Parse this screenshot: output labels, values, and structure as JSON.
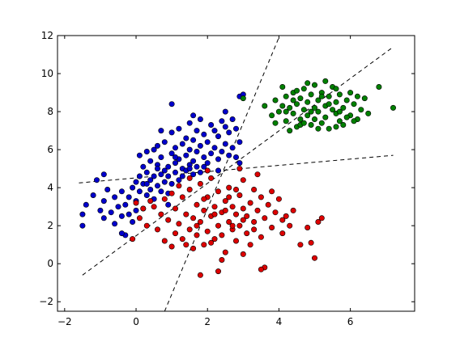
{
  "chart_data": {
    "type": "scatter",
    "title": "",
    "xlabel": "",
    "ylabel": "",
    "xlim": [
      -2.2,
      7.8
    ],
    "ylim": [
      -2.5,
      12
    ],
    "grid": false,
    "xticks": [
      "−2",
      "0",
      "2",
      "4",
      "6"
    ],
    "yticks": [
      "−2",
      "0",
      "2",
      "4",
      "6",
      "8",
      "10",
      "12"
    ],
    "xtick_values": [
      -2,
      0,
      2,
      4,
      6
    ],
    "ytick_values": [
      -2,
      0,
      2,
      4,
      6,
      8,
      10,
      12
    ],
    "marker_edge_color": "#000000",
    "series": [
      {
        "color": "#0000cc",
        "points": [
          [
            -1.5,
            2.0
          ],
          [
            -1.5,
            2.6
          ],
          [
            -1.4,
            3.1
          ],
          [
            -1.2,
            3.6
          ],
          [
            -1.1,
            4.4
          ],
          [
            -1.0,
            2.8
          ],
          [
            -0.9,
            3.3
          ],
          [
            -0.9,
            2.4
          ],
          [
            -0.8,
            3.9
          ],
          [
            -0.7,
            2.7
          ],
          [
            -0.6,
            2.1
          ],
          [
            -0.6,
            3.5
          ],
          [
            -0.5,
            3.0
          ],
          [
            -0.4,
            3.8
          ],
          [
            -0.4,
            2.5
          ],
          [
            -0.3,
            3.1
          ],
          [
            -0.3,
            1.5
          ],
          [
            -0.2,
            2.6
          ],
          [
            -0.2,
            3.5
          ],
          [
            -0.1,
            4.0
          ],
          [
            -0.1,
            2.2
          ],
          [
            0.0,
            4.3
          ],
          [
            0.0,
            3.3
          ],
          [
            0.0,
            2.8
          ],
          [
            0.1,
            5.7
          ],
          [
            0.1,
            4.6
          ],
          [
            0.1,
            3.8
          ],
          [
            0.2,
            5.1
          ],
          [
            0.2,
            4.2
          ],
          [
            0.2,
            2.9
          ],
          [
            0.3,
            4.8
          ],
          [
            0.3,
            3.6
          ],
          [
            0.3,
            5.9
          ],
          [
            0.4,
            4.4
          ],
          [
            0.4,
            3.9
          ],
          [
            0.4,
            5.4
          ],
          [
            0.5,
            6.0
          ],
          [
            0.5,
            4.6
          ],
          [
            0.5,
            3.4
          ],
          [
            0.6,
            4.1
          ],
          [
            0.6,
            5.2
          ],
          [
            0.6,
            6.2
          ],
          [
            0.7,
            4.7
          ],
          [
            0.7,
            3.8
          ],
          [
            0.7,
            5.6
          ],
          [
            0.8,
            4.9
          ],
          [
            0.8,
            4.3
          ],
          [
            0.8,
            6.4
          ],
          [
            0.9,
            5.1
          ],
          [
            0.9,
            3.7
          ],
          [
            0.9,
            4.6
          ],
          [
            1.0,
            5.8
          ],
          [
            1.0,
            4.2
          ],
          [
            1.0,
            6.9
          ],
          [
            1.1,
            5.3
          ],
          [
            1.1,
            4.8
          ],
          [
            1.1,
            6.1
          ],
          [
            1.2,
            5.5
          ],
          [
            1.2,
            4.4
          ],
          [
            1.2,
            7.1
          ],
          [
            1.3,
            5.0
          ],
          [
            1.3,
            6.3
          ],
          [
            1.3,
            4.6
          ],
          [
            1.4,
            5.7
          ],
          [
            1.4,
            6.6
          ],
          [
            1.4,
            4.9
          ],
          [
            1.5,
            5.2
          ],
          [
            1.5,
            7.4
          ],
          [
            1.5,
            6.0
          ],
          [
            1.6,
            5.4
          ],
          [
            1.6,
            4.7
          ],
          [
            1.6,
            6.5
          ],
          [
            1.7,
            5.9
          ],
          [
            1.7,
            7.0
          ],
          [
            1.7,
            5.1
          ],
          [
            1.8,
            6.2
          ],
          [
            1.8,
            4.8
          ],
          [
            1.8,
            7.6
          ],
          [
            1.9,
            5.6
          ],
          [
            1.9,
            6.8
          ],
          [
            2.0,
            5.3
          ],
          [
            2.0,
            6.4
          ],
          [
            2.1,
            7.3
          ],
          [
            2.1,
            5.8
          ],
          [
            2.2,
            6.1
          ],
          [
            2.2,
            7.0
          ],
          [
            2.3,
            5.5
          ],
          [
            2.3,
            6.7
          ],
          [
            2.4,
            7.5
          ],
          [
            2.4,
            5.9
          ],
          [
            2.5,
            6.3
          ],
          [
            2.5,
            7.2
          ],
          [
            2.6,
            5.7
          ],
          [
            2.6,
            6.9
          ],
          [
            2.7,
            7.6
          ],
          [
            2.7,
            6.1
          ],
          [
            2.8,
            5.6
          ],
          [
            2.8,
            7.1
          ],
          [
            2.9,
            6.4
          ],
          [
            2.9,
            8.8
          ],
          [
            3.0,
            8.9
          ],
          [
            1.0,
            8.4
          ],
          [
            2.5,
            8.0
          ],
          [
            0.7,
            7.0
          ],
          [
            1.6,
            7.8
          ],
          [
            2.3,
            4.9
          ],
          [
            2.9,
            5.3
          ],
          [
            -0.9,
            4.7
          ],
          [
            0.9,
            3.1
          ],
          [
            -0.4,
            1.6
          ],
          [
            1.5,
            5.0
          ],
          [
            1.1,
            5.6
          ],
          [
            0.3,
            4.2
          ],
          [
            1.9,
            5.1
          ],
          [
            0.6,
            5.0
          ]
        ]
      },
      {
        "color": "#008000",
        "points": [
          [
            3.0,
            8.7
          ],
          [
            3.6,
            8.3
          ],
          [
            3.8,
            7.8
          ],
          [
            3.9,
            8.6
          ],
          [
            4.0,
            8.0
          ],
          [
            4.1,
            9.3
          ],
          [
            4.2,
            7.5
          ],
          [
            4.2,
            8.8
          ],
          [
            4.3,
            8.2
          ],
          [
            4.4,
            7.9
          ],
          [
            4.4,
            9.0
          ],
          [
            4.5,
            8.4
          ],
          [
            4.5,
            7.2
          ],
          [
            4.6,
            8.7
          ],
          [
            4.6,
            7.6
          ],
          [
            4.7,
            8.1
          ],
          [
            4.7,
            9.2
          ],
          [
            4.8,
            7.8
          ],
          [
            4.8,
            8.5
          ],
          [
            4.9,
            7.3
          ],
          [
            4.9,
            8.9
          ],
          [
            5.0,
            8.2
          ],
          [
            5.0,
            7.6
          ],
          [
            5.0,
            9.4
          ],
          [
            5.1,
            8.0
          ],
          [
            5.1,
            8.6
          ],
          [
            5.2,
            7.4
          ],
          [
            5.2,
            9.0
          ],
          [
            5.3,
            8.3
          ],
          [
            5.3,
            7.7
          ],
          [
            5.4,
            8.8
          ],
          [
            5.4,
            7.1
          ],
          [
            5.5,
            8.1
          ],
          [
            5.5,
            9.3
          ],
          [
            5.6,
            7.9
          ],
          [
            5.6,
            8.5
          ],
          [
            5.7,
            7.5
          ],
          [
            5.7,
            8.9
          ],
          [
            5.8,
            8.2
          ],
          [
            5.8,
            7.3
          ],
          [
            5.9,
            8.6
          ],
          [
            6.0,
            7.8
          ],
          [
            6.0,
            9.0
          ],
          [
            6.1,
            8.4
          ],
          [
            6.2,
            7.6
          ],
          [
            6.3,
            8.1
          ],
          [
            6.4,
            8.7
          ],
          [
            6.5,
            7.9
          ],
          [
            6.8,
            9.3
          ],
          [
            7.2,
            8.2
          ],
          [
            4.3,
            7.0
          ],
          [
            4.6,
            7.3
          ],
          [
            5.1,
            7.1
          ],
          [
            5.6,
            7.2
          ],
          [
            3.9,
            7.4
          ],
          [
            4.8,
            9.5
          ],
          [
            5.3,
            9.6
          ],
          [
            4.1,
            8.3
          ],
          [
            5.7,
            8.0
          ],
          [
            6.2,
            8.8
          ],
          [
            4.4,
            8.6
          ],
          [
            4.9,
            8.0
          ],
          [
            5.4,
            8.4
          ],
          [
            5.9,
            7.7
          ],
          [
            4.2,
            8.0
          ],
          [
            4.7,
            7.4
          ],
          [
            5.2,
            8.8
          ],
          [
            5.6,
            9.2
          ],
          [
            6.1,
            7.5
          ],
          [
            4.5,
            9.1
          ]
        ]
      },
      {
        "color": "#dd0000",
        "points": [
          [
            -0.1,
            1.3
          ],
          [
            0.0,
            3.2
          ],
          [
            0.1,
            2.4
          ],
          [
            0.3,
            2.0
          ],
          [
            0.5,
            3.0
          ],
          [
            0.6,
            1.8
          ],
          [
            0.7,
            2.6
          ],
          [
            0.8,
            3.4
          ],
          [
            0.8,
            1.2
          ],
          [
            0.9,
            2.3
          ],
          [
            1.0,
            0.9
          ],
          [
            1.0,
            3.7
          ],
          [
            1.1,
            1.6
          ],
          [
            1.1,
            2.9
          ],
          [
            1.2,
            2.1
          ],
          [
            1.3,
            3.5
          ],
          [
            1.3,
            1.3
          ],
          [
            1.4,
            2.6
          ],
          [
            1.5,
            3.9
          ],
          [
            1.5,
            1.8
          ],
          [
            1.6,
            2.4
          ],
          [
            1.6,
            0.8
          ],
          [
            1.7,
            3.1
          ],
          [
            1.7,
            1.5
          ],
          [
            1.8,
            4.2
          ],
          [
            1.8,
            2.2
          ],
          [
            1.9,
            2.8
          ],
          [
            1.9,
            1.0
          ],
          [
            2.0,
            3.5
          ],
          [
            2.0,
            1.7
          ],
          [
            2.1,
            2.5
          ],
          [
            2.1,
            4.5
          ],
          [
            2.2,
            1.3
          ],
          [
            2.2,
            3.0
          ],
          [
            2.3,
            2.0
          ],
          [
            2.3,
            3.8
          ],
          [
            2.4,
            2.7
          ],
          [
            2.4,
            1.5
          ],
          [
            2.5,
            3.3
          ],
          [
            2.5,
            0.6
          ],
          [
            2.6,
            2.2
          ],
          [
            2.6,
            4.0
          ],
          [
            2.7,
            1.8
          ],
          [
            2.7,
            3.0
          ],
          [
            2.8,
            2.6
          ],
          [
            2.8,
            1.2
          ],
          [
            2.9,
            3.6
          ],
          [
            2.9,
            2.0
          ],
          [
            3.0,
            2.9
          ],
          [
            3.0,
            4.4
          ],
          [
            3.1,
            1.6
          ],
          [
            3.1,
            2.5
          ],
          [
            3.2,
            3.2
          ],
          [
            3.2,
            1.0
          ],
          [
            3.3,
            2.2
          ],
          [
            3.3,
            3.9
          ],
          [
            3.4,
            2.8
          ],
          [
            3.5,
            1.4
          ],
          [
            3.5,
            3.5
          ],
          [
            3.6,
            2.4
          ],
          [
            3.6,
            -0.2
          ],
          [
            3.7,
            3.1
          ],
          [
            3.8,
            1.9
          ],
          [
            3.9,
            2.7
          ],
          [
            4.0,
            3.4
          ],
          [
            4.1,
            1.6
          ],
          [
            4.2,
            2.5
          ],
          [
            4.3,
            2.0
          ],
          [
            4.4,
            2.8
          ],
          [
            4.6,
            1.0
          ],
          [
            4.8,
            1.9
          ],
          [
            4.9,
            1.1
          ],
          [
            5.0,
            0.3
          ],
          [
            5.1,
            2.2
          ],
          [
            5.2,
            2.4
          ],
          [
            3.4,
            4.7
          ],
          [
            2.9,
            5.0
          ],
          [
            2.0,
            4.9
          ],
          [
            1.5,
            4.5
          ],
          [
            2.4,
            0.2
          ],
          [
            3.0,
            0.5
          ],
          [
            1.8,
            -0.6
          ],
          [
            3.5,
            -0.3
          ],
          [
            0.2,
            2.9
          ],
          [
            0.4,
            3.3
          ],
          [
            1.2,
            4.1
          ],
          [
            2.3,
            -0.4
          ],
          [
            2.6,
            3.5
          ],
          [
            3.8,
            3.8
          ],
          [
            4.1,
            2.3
          ],
          [
            1.4,
            1.0
          ],
          [
            2.1,
            1.1
          ],
          [
            2.8,
            3.9
          ],
          [
            3.3,
            1.8
          ],
          [
            1.9,
            3.4
          ],
          [
            2.5,
            2.8
          ],
          [
            3.0,
            2.3
          ],
          [
            2.2,
            2.6
          ],
          [
            1.7,
            2.0
          ],
          [
            2.7,
            2.0
          ]
        ]
      }
    ],
    "lines": [
      {
        "x": [
          -1.5,
          7.2
        ],
        "y": [
          -0.6,
          11.4
        ]
      },
      {
        "x": [
          -1.6,
          7.2
        ],
        "y": [
          4.25,
          5.7
        ]
      },
      {
        "x": [
          0.8,
          4.0
        ],
        "y": [
          -2.5,
          11.9
        ]
      }
    ]
  }
}
